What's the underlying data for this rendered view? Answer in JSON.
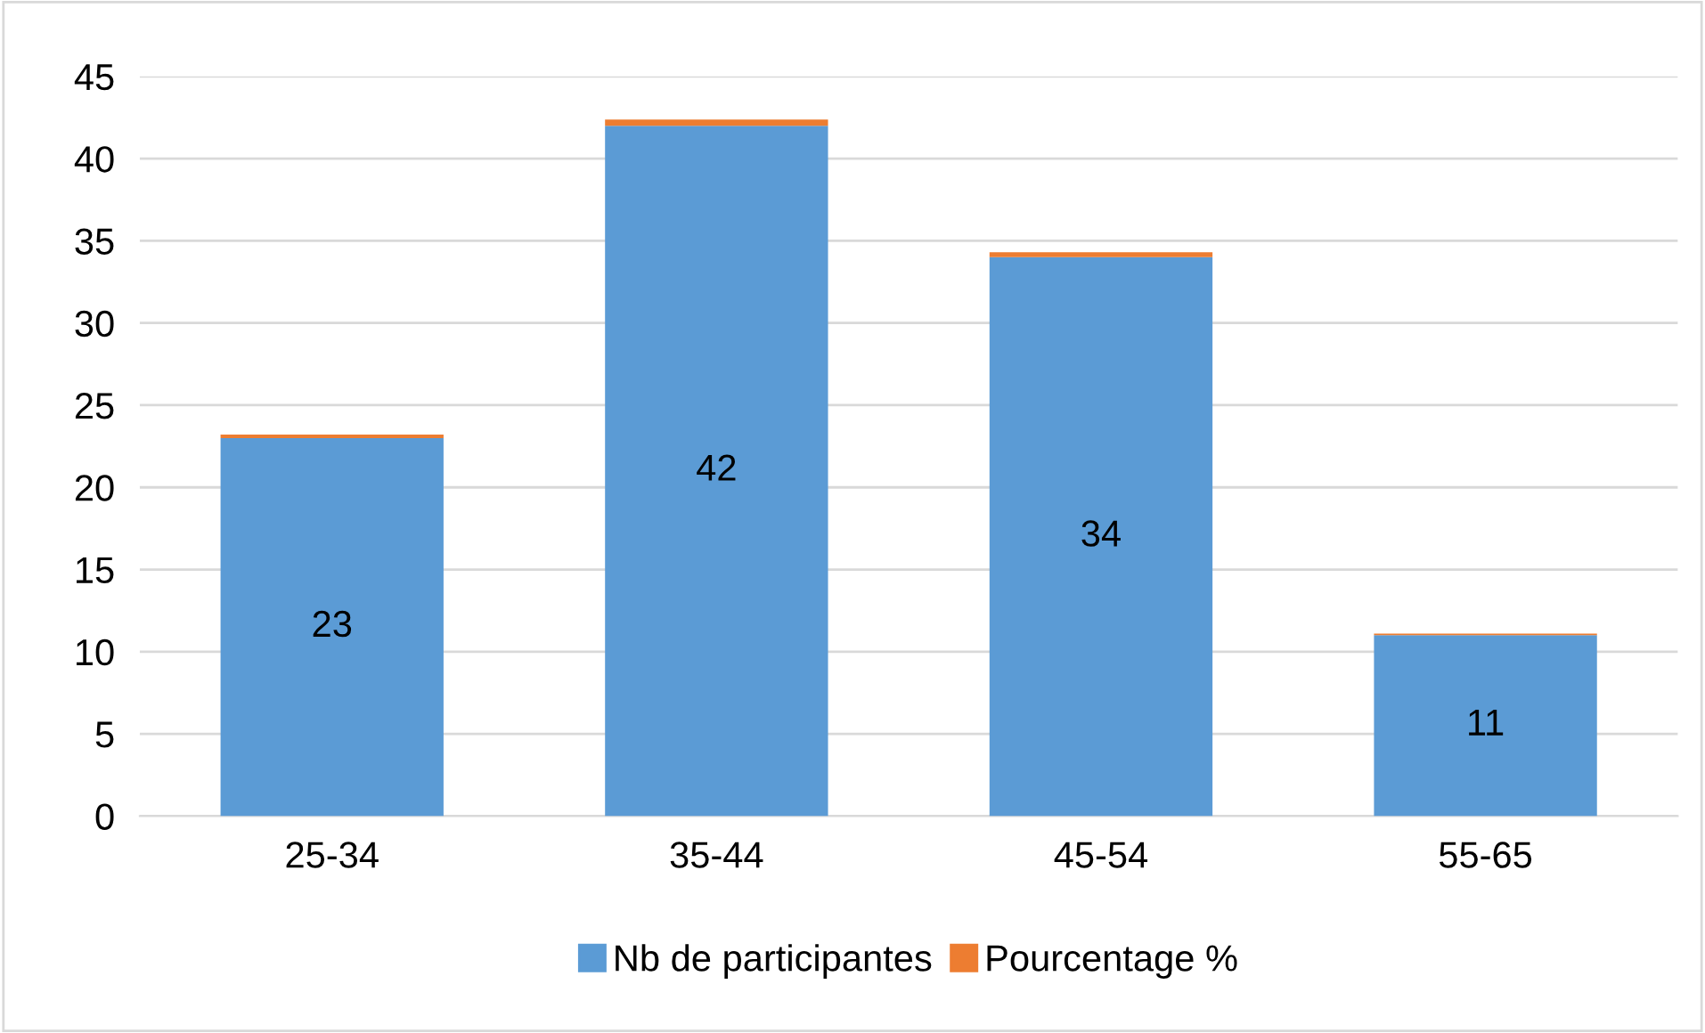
{
  "chart_data": {
    "type": "bar",
    "stacked": true,
    "categories": [
      "25-34",
      "35-44",
      "45-54",
      "55-65"
    ],
    "series": [
      {
        "name": "Nb de participantes",
        "color": "#5b9bd5",
        "values": [
          23,
          42,
          34,
          11
        ],
        "value_labels": [
          "23",
          "42",
          "34",
          "11"
        ]
      },
      {
        "name": "Pourcentage %",
        "color": "#ed7d31",
        "values": [
          0.21,
          0.38,
          0.31,
          0.1
        ]
      }
    ],
    "ylim": [
      0,
      45
    ],
    "yticks": [
      0,
      5,
      10,
      15,
      20,
      25,
      30,
      35,
      40,
      45
    ],
    "grid": "y",
    "legend": "bottom"
  }
}
